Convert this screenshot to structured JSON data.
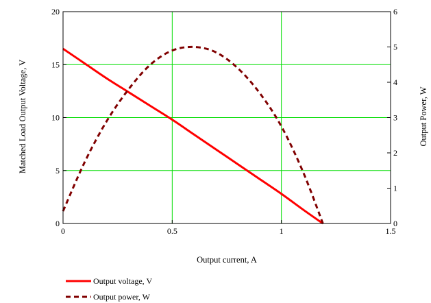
{
  "chart_data": {
    "type": "line",
    "xlabel": "Output current, A",
    "ylabel_left": "Matched Load Output Voltage, V",
    "ylabel_right": "Output Power, W",
    "xlim": [
      0,
      1.5
    ],
    "ylim_left": [
      0,
      20
    ],
    "ylim_right": [
      0,
      6
    ],
    "x_ticks": [
      "0",
      "0.5",
      "1",
      "1.5"
    ],
    "y_left_ticks": [
      "0",
      "5",
      "10",
      "15",
      "20"
    ],
    "y_right_ticks": [
      "0",
      "1",
      "2",
      "3",
      "4",
      "5",
      "6"
    ],
    "x_tick_values": [
      0,
      0.5,
      1,
      1.5
    ],
    "y_left_tick_values": [
      0,
      5,
      10,
      15,
      20
    ],
    "y_right_tick_values": [
      0,
      1,
      2,
      3,
      4,
      5,
      6
    ],
    "grid": true,
    "grid_color": "#00dd00",
    "legend_position": "bottom-left",
    "series": [
      {
        "name": "Output voltage, V",
        "axis": "left",
        "style": "solid",
        "color": "#ff0000",
        "x": [
          0.0,
          0.1,
          0.2,
          0.3,
          0.4,
          0.5,
          0.6,
          0.7,
          0.8,
          0.9,
          1.0,
          1.1,
          1.19
        ],
        "y": [
          16.5,
          15.1,
          13.7,
          12.4,
          11.1,
          9.8,
          8.4,
          7.0,
          5.6,
          4.2,
          2.8,
          1.3,
          0.0
        ]
      },
      {
        "name": "Output power, W",
        "axis": "right",
        "style": "dashed",
        "color": "#800000",
        "x": [
          0.0,
          0.1,
          0.2,
          0.3,
          0.4,
          0.5,
          0.6,
          0.7,
          0.8,
          0.9,
          1.0,
          1.1,
          1.19
        ],
        "y": [
          0.35,
          1.75,
          2.9,
          3.8,
          4.5,
          4.9,
          5.0,
          4.85,
          4.4,
          3.7,
          2.75,
          1.45,
          0.0
        ]
      }
    ]
  }
}
